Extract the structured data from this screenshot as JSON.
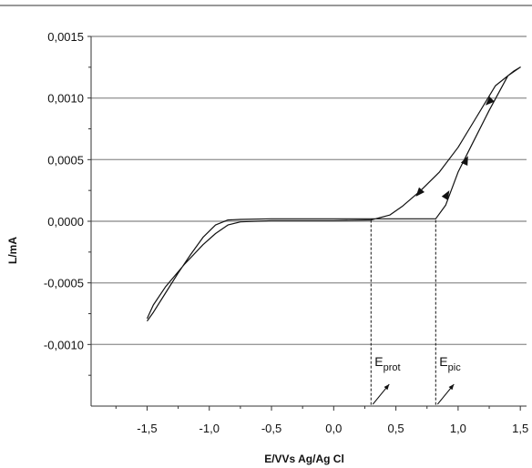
{
  "chart_data": {
    "type": "line",
    "title": "",
    "xlabel": "E/VVs Ag/Ag Cl",
    "ylabel": "L/mA",
    "xlim": [
      -1.95,
      1.55
    ],
    "ylim": [
      -0.0015,
      0.0015
    ],
    "grid": "horizontal",
    "x_ticks": [
      -1.5,
      -1.0,
      -0.5,
      0.0,
      0.5,
      1.0,
      1.5
    ],
    "x_tick_labels": [
      "-1,5",
      "-1,0",
      "-0,5",
      "0,0",
      "0,5",
      "1,0",
      "1,5"
    ],
    "y_ticks": [
      0.0015,
      0.001,
      0.0005,
      0.0,
      -0.0005,
      -0.001
    ],
    "y_tick_labels": [
      "0,0015",
      "0,0010",
      "0,0005",
      "0,0000",
      "-0,0005",
      "-0,0010"
    ],
    "series": [
      {
        "values": [
          [
            -1.5,
            -0.00081
          ],
          [
            -1.45,
            -0.00074
          ],
          [
            -1.35,
            -0.00058
          ],
          [
            -1.25,
            -0.00042
          ],
          [
            -1.15,
            -0.00027
          ],
          [
            -1.05,
            -0.00013
          ],
          [
            -0.95,
            -3e-05
          ],
          [
            -0.85,
            1e-05
          ],
          [
            -0.75,
            1.5e-05
          ],
          [
            -0.5,
            2e-05
          ],
          [
            0.0,
            2e-05
          ],
          [
            0.3,
            2e-05
          ],
          [
            0.5,
            2e-05
          ],
          [
            0.82,
            2e-05
          ],
          [
            0.9,
            0.00013
          ],
          [
            1.0,
            0.0004
          ],
          [
            1.1,
            0.0006
          ],
          [
            1.25,
            0.0009
          ],
          [
            1.4,
            0.00118
          ],
          [
            1.5,
            0.00125
          ],
          [
            1.45,
            0.00122
          ],
          [
            1.3,
            0.0011
          ],
          [
            1.15,
            0.00085
          ],
          [
            1.0,
            0.0006
          ],
          [
            0.85,
            0.0004
          ],
          [
            0.7,
            0.00025
          ],
          [
            0.55,
            0.00012
          ],
          [
            0.45,
            5e-05
          ],
          [
            0.3,
            1e-05
          ],
          [
            0.0,
            5e-06
          ],
          [
            -0.5,
            5e-06
          ],
          [
            -0.75,
            -5e-06
          ],
          [
            -0.85,
            -3e-05
          ],
          [
            -0.95,
            -0.0001
          ],
          [
            -1.05,
            -0.00019
          ],
          [
            -1.2,
            -0.00035
          ],
          [
            -1.35,
            -0.00053
          ],
          [
            -1.45,
            -0.00068
          ],
          [
            -1.5,
            -0.00079
          ]
        ]
      }
    ],
    "arrows": [
      {
        "from": [
          1.02,
          0.0004
        ],
        "to": [
          1.08,
          0.00053
        ]
      },
      {
        "from": [
          0.86,
          0.00013
        ],
        "to": [
          0.93,
          0.00025
        ]
      },
      {
        "from": [
          1.28,
          0.001
        ],
        "to": [
          1.22,
          0.00094
        ]
      },
      {
        "from": [
          0.72,
          0.00027
        ],
        "to": [
          0.66,
          0.0002
        ]
      }
    ],
    "annotations": [
      {
        "name": "E_prot",
        "text": "E",
        "sub": "prot",
        "x": 0.3
      },
      {
        "name": "E_pic",
        "text": "E",
        "sub": "pic",
        "x": 0.82
      }
    ]
  }
}
